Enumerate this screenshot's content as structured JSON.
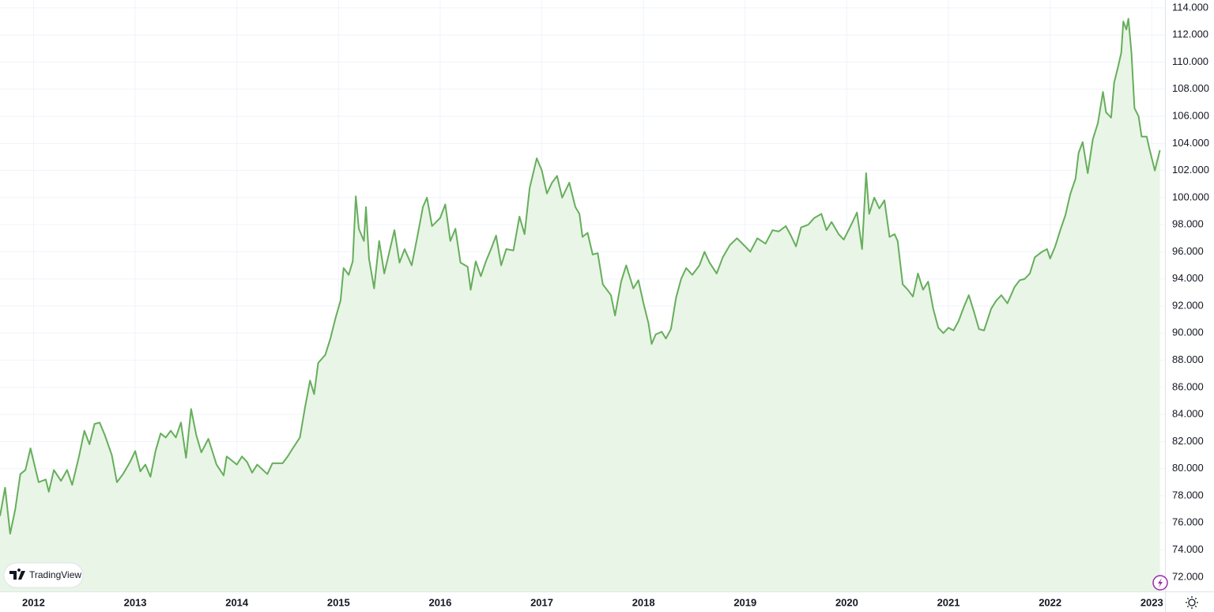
{
  "chart_data": {
    "type": "area",
    "watermark": "TradingView",
    "color": "#66ae5c",
    "fill_color": "#e9f5e6",
    "grid": true,
    "y_axis_side": "right",
    "xlim": [
      2011.67,
      2023.13
    ],
    "xticks": [
      2012,
      2013,
      2014,
      2015,
      2016,
      2017,
      2018,
      2019,
      2020,
      2021,
      2022,
      2023
    ],
    "ylim": [
      70.94,
      114.58
    ],
    "yticks": [
      {
        "value": 72,
        "label": "72.000"
      },
      {
        "value": 74,
        "label": "74.000"
      },
      {
        "value": 76,
        "label": "76.000"
      },
      {
        "value": 78,
        "label": "78.000"
      },
      {
        "value": 80,
        "label": "80.000"
      },
      {
        "value": 82,
        "label": "82.000"
      },
      {
        "value": 84,
        "label": "84.000"
      },
      {
        "value": 86,
        "label": "86.000"
      },
      {
        "value": 88,
        "label": "88.000"
      },
      {
        "value": 90,
        "label": "90.000"
      },
      {
        "value": 92,
        "label": "92.000"
      },
      {
        "value": 94,
        "label": "94.000"
      },
      {
        "value": 96,
        "label": "96.000"
      },
      {
        "value": 98,
        "label": "98.000"
      },
      {
        "value": 100,
        "label": "100.000"
      },
      {
        "value": 102,
        "label": "102.000"
      },
      {
        "value": 104,
        "label": "104.000"
      },
      {
        "value": 106,
        "label": "106.000"
      },
      {
        "value": 108,
        "label": "108.000"
      },
      {
        "value": 110,
        "label": "110.000"
      },
      {
        "value": 112,
        "label": "112.000"
      },
      {
        "value": 114,
        "label": "114.000"
      }
    ],
    "x": [
      2011.67,
      2011.72,
      2011.77,
      2011.82,
      2011.87,
      2011.92,
      2011.97,
      2012.05,
      2012.12,
      2012.15,
      2012.2,
      2012.27,
      2012.33,
      2012.38,
      2012.45,
      2012.5,
      2012.55,
      2012.6,
      2012.65,
      2012.7,
      2012.77,
      2012.82,
      2012.88,
      2012.95,
      2013.0,
      2013.05,
      2013.1,
      2013.15,
      2013.2,
      2013.25,
      2013.3,
      2013.35,
      2013.4,
      2013.45,
      2013.5,
      2013.55,
      2013.6,
      2013.65,
      2013.72,
      2013.8,
      2013.87,
      2013.9,
      2014.0,
      2014.05,
      2014.1,
      2014.15,
      2014.2,
      2014.3,
      2014.35,
      2014.45,
      2014.5,
      2014.55,
      2014.62,
      2014.67,
      2014.72,
      2014.76,
      2014.8,
      2014.87,
      2014.92,
      2014.97,
      2015.02,
      2015.05,
      2015.1,
      2015.14,
      2015.17,
      2015.2,
      2015.25,
      2015.27,
      2015.3,
      2015.35,
      2015.4,
      2015.45,
      2015.5,
      2015.55,
      2015.6,
      2015.65,
      2015.72,
      2015.78,
      2015.83,
      2015.87,
      2015.92,
      2016.0,
      2016.05,
      2016.1,
      2016.15,
      2016.2,
      2016.27,
      2016.3,
      2016.35,
      2016.4,
      2016.45,
      2016.5,
      2016.55,
      2016.6,
      2016.65,
      2016.72,
      2016.78,
      2016.83,
      2016.88,
      2016.95,
      2017.0,
      2017.05,
      2017.1,
      2017.15,
      2017.2,
      2017.27,
      2017.33,
      2017.37,
      2017.4,
      2017.45,
      2017.5,
      2017.55,
      2017.6,
      2017.68,
      2017.72,
      2017.78,
      2017.83,
      2017.9,
      2017.95,
      2018.0,
      2018.05,
      2018.08,
      2018.12,
      2018.18,
      2018.22,
      2018.27,
      2018.32,
      2018.37,
      2018.42,
      2018.48,
      2018.55,
      2018.6,
      2018.65,
      2018.72,
      2018.78,
      2018.85,
      2018.92,
      2019.0,
      2019.05,
      2019.12,
      2019.2,
      2019.27,
      2019.33,
      2019.4,
      2019.45,
      2019.5,
      2019.55,
      2019.62,
      2019.68,
      2019.75,
      2019.8,
      2019.85,
      2019.92,
      2019.97,
      2020.05,
      2020.1,
      2020.15,
      2020.19,
      2020.22,
      2020.27,
      2020.32,
      2020.37,
      2020.42,
      2020.47,
      2020.5,
      2020.55,
      2020.6,
      2020.65,
      2020.7,
      2020.75,
      2020.8,
      2020.85,
      2020.9,
      2020.95,
      2021.0,
      2021.05,
      2021.1,
      2021.15,
      2021.2,
      2021.25,
      2021.3,
      2021.35,
      2021.42,
      2021.47,
      2021.52,
      2021.58,
      2021.65,
      2021.7,
      2021.75,
      2021.8,
      2021.85,
      2021.92,
      2021.97,
      2022.0,
      2022.05,
      2022.1,
      2022.15,
      2022.2,
      2022.25,
      2022.28,
      2022.32,
      2022.37,
      2022.42,
      2022.47,
      2022.52,
      2022.55,
      2022.6,
      2022.63,
      2022.67,
      2022.7,
      2022.72,
      2022.75,
      2022.77,
      2022.8,
      2022.83,
      2022.87,
      2022.9,
      2022.95,
      2022.98,
      2023.03,
      2023.08
    ],
    "values": [
      76.5,
      78.6,
      75.2,
      77,
      79.6,
      79.9,
      81.5,
      79,
      79.2,
      78.3,
      79.9,
      79.1,
      79.9,
      78.8,
      81,
      82.8,
      81.8,
      83.3,
      83.4,
      82.5,
      81,
      79,
      79.6,
      80.5,
      81.3,
      79.8,
      80.3,
      79.4,
      81.3,
      82.6,
      82.3,
      82.8,
      82.3,
      83.4,
      80.8,
      84.4,
      82.5,
      81.2,
      82.2,
      80.3,
      79.5,
      80.9,
      80.3,
      80.9,
      80.5,
      79.7,
      80.3,
      79.6,
      80.4,
      80.4,
      80.9,
      81.5,
      82.3,
      84.5,
      86.5,
      85.5,
      87.8,
      88.4,
      89.6,
      91.1,
      92.4,
      94.8,
      94.3,
      95.3,
      100.1,
      97.7,
      96.8,
      99.3,
      95.5,
      93.3,
      96.8,
      94.4,
      96,
      97.6,
      95.2,
      96.2,
      95,
      97.3,
      99.3,
      100,
      97.9,
      98.5,
      99.5,
      96.8,
      97.7,
      95.2,
      94.9,
      93.2,
      95.3,
      94.2,
      95.3,
      96.2,
      97.2,
      95,
      96.2,
      96.1,
      98.6,
      97.3,
      100.7,
      102.9,
      102,
      100.3,
      101.1,
      101.6,
      100,
      101.1,
      99.3,
      98.8,
      97.1,
      97.4,
      95.8,
      95.9,
      93.6,
      92.8,
      91.3,
      93.8,
      95,
      93.3,
      93.9,
      92.2,
      90.7,
      89.2,
      89.9,
      90.1,
      89.6,
      90.3,
      92.6,
      94,
      94.8,
      94.3,
      95,
      96,
      95.2,
      94.4,
      95.6,
      96.5,
      97,
      96.4,
      96,
      97,
      96.6,
      97.6,
      97.5,
      97.9,
      97.2,
      96.4,
      97.8,
      98,
      98.5,
      98.8,
      97.6,
      98.2,
      97.3,
      96.9,
      98.1,
      98.9,
      96.2,
      101.8,
      98.8,
      100,
      99.2,
      99.8,
      97.1,
      97.3,
      96.8,
      93.6,
      93.2,
      92.7,
      94.4,
      93.2,
      93.8,
      91.8,
      90.4,
      90,
      90.4,
      90.2,
      90.9,
      91.9,
      92.8,
      91.6,
      90.3,
      90.2,
      91.8,
      92.4,
      92.8,
      92.2,
      93.4,
      93.9,
      94,
      94.4,
      95.6,
      96,
      96.2,
      95.5,
      96.4,
      97.6,
      98.7,
      100.3,
      101.4,
      103.3,
      104.1,
      101.8,
      104.3,
      105.5,
      107.8,
      106.3,
      105.9,
      108.5,
      109.7,
      110.7,
      113,
      112.4,
      113.2,
      110.7,
      106.6,
      106,
      104.5,
      104.5,
      103.5,
      102,
      103.5
    ]
  }
}
